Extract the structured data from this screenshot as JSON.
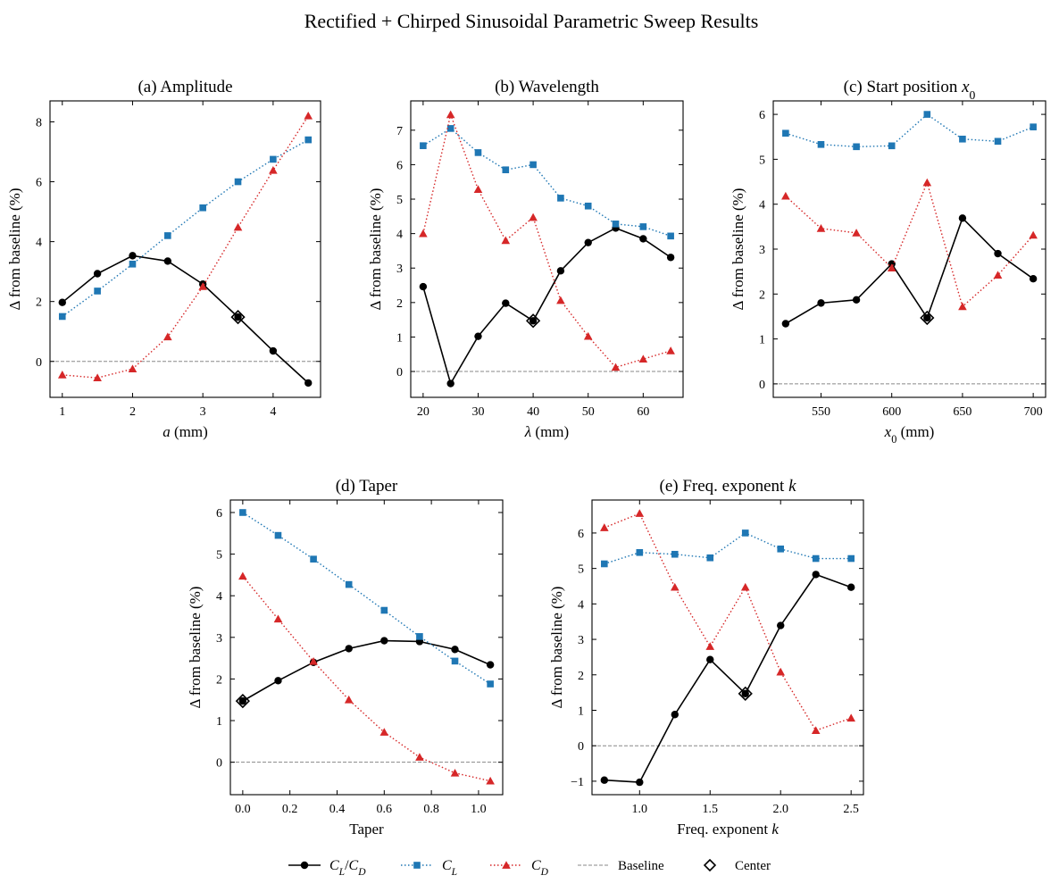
{
  "figure": {
    "suptitle": "Rectified + Chirped Sinusoidal Parametric Sweep Results"
  },
  "legend": {
    "items": [
      {
        "key": "ld",
        "label": "C_L/C_D",
        "color": "#000000"
      },
      {
        "key": "cl",
        "label": "C_L",
        "color": "#1f77b4"
      },
      {
        "key": "cd",
        "label": "C_D",
        "color": "#d62728"
      },
      {
        "key": "baseline",
        "label": "Baseline",
        "color": "#888888"
      },
      {
        "key": "center",
        "label": "Center",
        "color": "#000000"
      }
    ]
  },
  "chart_data": [
    {
      "type": "line",
      "title": "(a) Amplitude",
      "xlabel": "a (mm)",
      "ylabel": "Δ from baseline (%)",
      "xlim": [
        0.825,
        4.675
      ],
      "ylim": [
        -1.2,
        8.7
      ],
      "xticks": [
        1,
        2,
        3,
        4
      ],
      "yticks": [
        0,
        2,
        4,
        6,
        8
      ],
      "x": [
        1.0,
        1.5,
        2.0,
        2.5,
        3.0,
        3.5,
        4.0,
        4.5
      ],
      "series": [
        {
          "name": "C_L/C_D",
          "values": [
            1.97,
            2.93,
            3.53,
            3.35,
            2.58,
            1.48,
            0.35,
            -0.72
          ]
        },
        {
          "name": "C_L",
          "values": [
            1.5,
            2.35,
            3.25,
            4.2,
            5.13,
            6.0,
            6.75,
            7.4
          ]
        },
        {
          "name": "C_D",
          "values": [
            -0.45,
            -0.55,
            -0.25,
            0.82,
            2.5,
            4.48,
            6.38,
            8.2
          ]
        }
      ],
      "baseline": 0,
      "center": {
        "x": 3.5,
        "y": 1.48
      }
    },
    {
      "type": "line",
      "title": "(b) Wavelength",
      "xlabel": "λ (mm)",
      "ylabel": "Δ from baseline (%)",
      "xlim": [
        17.75,
        67.25
      ],
      "ylim": [
        -0.75,
        7.85
      ],
      "xticks": [
        20,
        30,
        40,
        50,
        60
      ],
      "yticks": [
        0,
        1,
        2,
        3,
        4,
        5,
        6,
        7
      ],
      "x": [
        20,
        25,
        30,
        35,
        40,
        45,
        50,
        55,
        60,
        65
      ],
      "series": [
        {
          "name": "C_L/C_D",
          "values": [
            2.46,
            -0.35,
            1.02,
            1.98,
            1.47,
            2.92,
            3.74,
            4.16,
            3.85,
            3.31
          ]
        },
        {
          "name": "C_L",
          "values": [
            6.55,
            7.05,
            6.35,
            5.85,
            6.0,
            5.03,
            4.8,
            4.28,
            4.2,
            3.93
          ]
        },
        {
          "name": "C_D",
          "values": [
            4.0,
            7.45,
            5.28,
            3.8,
            4.47,
            2.06,
            1.02,
            0.12,
            0.36,
            0.6
          ]
        }
      ],
      "baseline": 0,
      "center": {
        "x": 40,
        "y": 1.47
      }
    },
    {
      "type": "line",
      "title": "(c) Start position x_0",
      "xlabel": "x_0 (mm)",
      "ylabel": "Δ from baseline (%)",
      "xlim": [
        516.25,
        708.75
      ],
      "ylim": [
        -0.3,
        6.3
      ],
      "xticks": [
        550,
        600,
        650,
        700
      ],
      "yticks": [
        0,
        1,
        2,
        3,
        4,
        5,
        6
      ],
      "x": [
        525,
        550,
        575,
        600,
        625,
        650,
        675,
        700
      ],
      "series": [
        {
          "name": "C_L/C_D",
          "values": [
            1.34,
            1.8,
            1.87,
            2.67,
            1.47,
            3.69,
            2.9,
            2.34
          ]
        },
        {
          "name": "C_L",
          "values": [
            5.58,
            5.33,
            5.28,
            5.3,
            6.0,
            5.45,
            5.4,
            5.72
          ]
        },
        {
          "name": "C_D",
          "values": [
            4.18,
            3.46,
            3.36,
            2.58,
            4.48,
            1.72,
            2.42,
            3.31
          ]
        }
      ],
      "baseline": 0,
      "center": {
        "x": 625,
        "y": 1.47
      }
    },
    {
      "type": "line",
      "title": "(d) Taper",
      "xlabel": "Taper",
      "ylabel": "Δ from baseline (%)",
      "xlim": [
        -0.0525,
        1.1025
      ],
      "ylim": [
        -0.78,
        6.3
      ],
      "xticks": [
        0.0,
        0.2,
        0.4,
        0.6,
        0.8,
        1.0
      ],
      "yticks": [
        0,
        1,
        2,
        3,
        4,
        5,
        6
      ],
      "x": [
        0.0,
        0.15,
        0.3,
        0.45,
        0.6,
        0.75,
        0.9,
        1.05
      ],
      "series": [
        {
          "name": "C_L/C_D",
          "values": [
            1.47,
            1.96,
            2.4,
            2.73,
            2.92,
            2.9,
            2.71,
            2.34
          ]
        },
        {
          "name": "C_L",
          "values": [
            6.0,
            5.45,
            4.88,
            4.27,
            3.65,
            3.02,
            2.43,
            1.88
          ]
        },
        {
          "name": "C_D",
          "values": [
            4.47,
            3.44,
            2.42,
            1.5,
            0.72,
            0.12,
            -0.26,
            -0.45
          ]
        }
      ],
      "baseline": 0,
      "center": {
        "x": 0.0,
        "y": 1.47
      }
    },
    {
      "type": "line",
      "title": "(e) Freq. exponent k",
      "xlabel": "Freq. exponent k",
      "ylabel": "Δ from baseline (%)",
      "xlim": [
        0.6625,
        2.5875
      ],
      "ylim": [
        -1.38,
        6.93
      ],
      "xticks": [
        1.0,
        1.5,
        2.0,
        2.5
      ],
      "yticks": [
        -1,
        0,
        1,
        2,
        3,
        4,
        5,
        6
      ],
      "x": [
        0.75,
        1.0,
        1.25,
        1.5,
        1.75,
        2.0,
        2.25,
        2.5
      ],
      "series": [
        {
          "name": "C_L/C_D",
          "values": [
            -0.97,
            -1.03,
            0.88,
            2.43,
            1.47,
            3.39,
            4.83,
            4.47
          ]
        },
        {
          "name": "C_L",
          "values": [
            5.13,
            5.45,
            5.4,
            5.3,
            6.0,
            5.55,
            5.28,
            5.28
          ]
        },
        {
          "name": "C_D",
          "values": [
            6.15,
            6.55,
            4.47,
            2.8,
            4.47,
            2.08,
            0.43,
            0.78
          ]
        }
      ],
      "baseline": 0,
      "center": {
        "x": 1.75,
        "y": 1.47
      }
    }
  ]
}
